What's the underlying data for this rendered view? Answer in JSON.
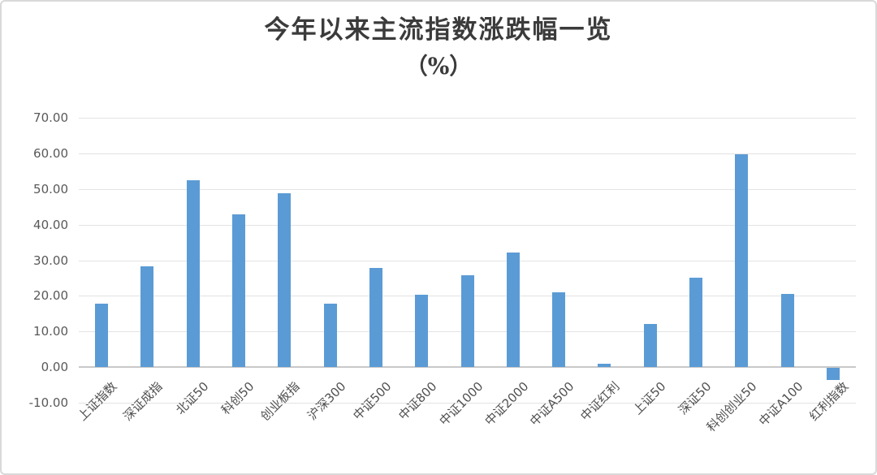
{
  "title": {
    "line1": "今年以来主流指数涨跌幅一览",
    "line2": "（%）"
  },
  "chart_data": {
    "type": "bar",
    "title": "今年以来主流指数涨跌幅一览（%）",
    "xlabel": "",
    "ylabel": "",
    "categories": [
      "上证指数",
      "深证成指",
      "北证50",
      "科创50",
      "创业板指",
      "沪深300",
      "中证500",
      "中证800",
      "中证1000",
      "中证2000",
      "中证A500",
      "中证红利",
      "上证50",
      "深证50",
      "科创创业50",
      "中证A100",
      "红利指数"
    ],
    "values": [
      17.9,
      28.3,
      52.4,
      43.0,
      48.9,
      17.9,
      27.8,
      20.4,
      25.9,
      32.1,
      21.1,
      0.9,
      12.2,
      25.1,
      59.9,
      20.5,
      -3.4
    ],
    "ylim": [
      -10,
      70
    ],
    "yticks": [
      70,
      60,
      50,
      40,
      30,
      20,
      10,
      0,
      -10
    ],
    "ytick_labels": [
      "70.00",
      "60.00",
      "50.00",
      "40.00",
      "30.00",
      "20.00",
      "10.00",
      "0.00",
      "-10.00"
    ],
    "grid": true,
    "legend": false,
    "xlabel_rotation_degrees": 45
  },
  "colors": {
    "bar": "#5B9BD5",
    "gridline": "#e3e3e3",
    "axis_line": "#c9c9c9",
    "tick_text": "#595959",
    "title_text": "#3b3b3b",
    "frame_border": "#d9d9d9"
  }
}
